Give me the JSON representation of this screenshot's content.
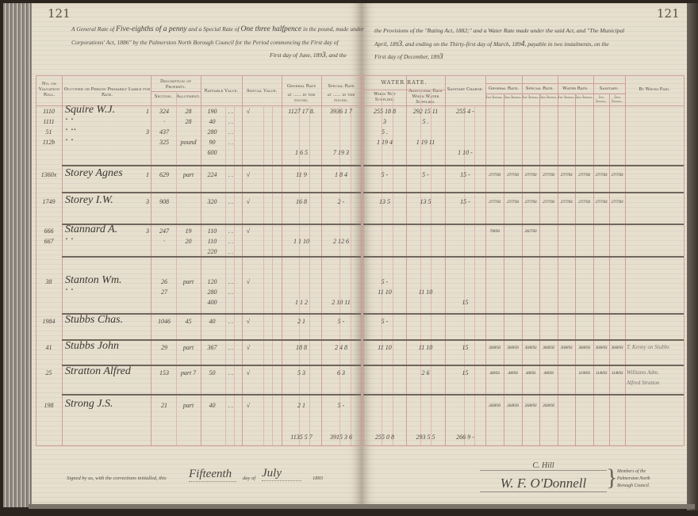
{
  "left_page": {
    "page_number": "121",
    "intro": {
      "l1_a": "A General Rate of ",
      "l1_hw1": "Five-eighths of a penny",
      "l1_b": " and a Special Rate of ",
      "l1_hw2": "One three halfpence",
      "l1_c": " in the pound, made under",
      "l2": "Corporations' Act, 1886\" by the Palmerston North Borough Council for the Period commencing the First day of",
      "l3_a": "First day of June, 189",
      "l3_hw": "3",
      "l3_b": ", and the"
    },
    "headers": {
      "roll": "No. on Valuation Roll.",
      "occupier": "Occupier or Person Primarily Liable for Rate.",
      "description": "Description of Property.",
      "section": "Section.",
      "allotment": "Allotment.",
      "rateable": "Rateable Value.",
      "annual": "Annual Value.",
      "general": "General Rate",
      "general_sub": "at ...... in the pound.",
      "special": "Special Rate",
      "special_sub": "at ...... in the pound."
    },
    "footer": {
      "signed": "Signed by us, with the corrections initialled, this",
      "day_hw": "Fifteenth",
      "day_of": "day of",
      "month_hw": "July",
      "year": "189",
      "year_hw": "3"
    }
  },
  "right_page": {
    "page_number": "121",
    "intro": {
      "l1": "the Provisions of the \"Rating Act, 1882;\" and a Water Rate made under the said Act, and \"The Municipal",
      "l2_a": "April, 189",
      "l2_hw1": "3",
      "l2_b": ", and ending on the Thirty-first day of March, 189",
      "l2_hw2": "4",
      "l2_c": ", payable in two instalments, on the",
      "l3_a": "First day of December, 189",
      "l3_hw": "3"
    },
    "headers": {
      "water_rate": "WATER RATE.",
      "not_supplied": "When Not Supplied.",
      "additional": "Additional Rate When Water Supplied.",
      "sanitary": "Sanitary Charge.",
      "groups": [
        "General Rate.",
        "Special Rate.",
        "Water Rate.",
        "Sanitary."
      ],
      "inst1": "1st Instal.",
      "inst2": "2nd Instal.",
      "paid_by": "By Whom Paid."
    },
    "footer": {
      "sig1": "C. Hill",
      "sig2": "W. F. O'Donnell",
      "members": [
        "Members of the",
        "Palmerston North",
        "Borough Council."
      ]
    }
  },
  "entries": [
    {
      "lines": [
        {
          "roll": "1110",
          "name": "Squire W.J.",
          "ward": "1",
          "sect": "324",
          "allot": "28",
          "rateable": "190",
          "dots": ". .",
          "check": "√",
          "general": "1127 17 8.",
          "special": "3936 1 7",
          "water_ns": "255 18 8",
          "water_add": "292 15 11",
          "sanitary": "255 4 -"
        },
        {
          "roll": "1111",
          "name": "·    ·",
          "sect": "·",
          "allot": "28",
          "rateable": "40",
          "dots": ". .",
          "water_ns": "3",
          "water_add": "5 ."
        },
        {
          "roll": "51",
          "name": "·    ··",
          "ward": "3",
          "sect": "437",
          "rateable": "280",
          "dots": ". .",
          "water_ns": "5 ."
        },
        {
          "roll": "112b",
          "name": "·    ·",
          "sect": "325",
          "allot": "pound",
          "rateable": "90",
          "dots": ". .",
          "water_ns": "1 19 4",
          "water_add": "1 19 11"
        },
        {
          "rateable": "600",
          "general": "1 6 5",
          "special": "7 19 3",
          "sanitary": "1 10 -"
        }
      ]
    },
    {
      "lines": [
        {
          "roll": "1360x",
          "name": "Storey Agnes",
          "ward": "1",
          "sect": "629",
          "allot": "part",
          "rateable": "224",
          "dots": ". .",
          "check": "√",
          "general": "11 9",
          "special": "1 8 4",
          "water_ns": "5 -",
          "water_add": "5 -",
          "sanitary": "15 -",
          "payments": [
            "27/7/93",
            "27/7/93",
            "27/7/93",
            "27/7/93",
            "27/7/93",
            "27/7/93",
            "27/7/93",
            "27/7/93"
          ]
        }
      ]
    },
    {
      "lines": [
        {
          "roll": "1749",
          "name": "Storey I.W.",
          "ward": "3",
          "sect": "908",
          "rateable": "320",
          "dots": ". .",
          "check": "√",
          "general": "16 8",
          "special": "2 -",
          "water_ns": "13 5",
          "water_add": "13 5",
          "sanitary": "15 -",
          "payments": [
            "27/7/93",
            "27/7/93",
            "27/7/93",
            "27/7/93",
            "27/7/93",
            "27/7/93",
            "27/7/93",
            "27/7/93"
          ]
        }
      ]
    },
    {
      "lines": [
        {
          "roll": "666",
          "name": "Stannard A.",
          "ward": "3",
          "sect": "247",
          "allot": "19",
          "rateable": "110",
          "dots": ". .",
          "check": "√",
          "payments": [
            "7/8/93",
            "",
            "26/7/93",
            "",
            "",
            "",
            "",
            ""
          ]
        },
        {
          "roll": "667",
          "name": "·    ·",
          "sect": "·",
          "allot": "20",
          "rateable": "110",
          "dots": ". .",
          "general": "1 1 10",
          "special": "2 12 6"
        },
        {
          "rateable": "220",
          "dots": ". ."
        }
      ]
    },
    {
      "lines": [
        {
          "roll": "38",
          "name": "Stanton Wm.",
          "sect": "26",
          "allot": "part",
          "rateable": "120",
          "dots": ". .",
          "check": "√",
          "water_ns": "5 -"
        },
        {
          "name": "·    ·",
          "sect": "27",
          "rateable": "280",
          "dots": ". .",
          "water_ns": "11 10",
          "water_add": "11 10"
        },
        {
          "rateable": "400",
          "general": "1 1 2",
          "special": "2 10 11",
          "sanitary": "15"
        }
      ]
    },
    {
      "lines": [
        {
          "roll": "1984",
          "name": "Stubbs Chas.",
          "sect": "1046",
          "allot": "45",
          "rateable": "40",
          "dots": ". .",
          "check": "√",
          "general": "2 1",
          "special": "5 -",
          "water_ns": "5 -"
        }
      ]
    },
    {
      "lines": [
        {
          "roll": "41",
          "name": "Stubbs John",
          "sect": "29",
          "allot": "part",
          "rateable": "367",
          "dots": ". .",
          "check": "√",
          "general": "18 8",
          "special": "2 4 8",
          "water_ns": "11 10",
          "water_add": "11 10",
          "sanitary": "15",
          "payments": [
            "30/8/93",
            "30/8/93",
            "30/8/93",
            "30/8/93",
            "30/8/93",
            "30/8/93",
            "30/8/93",
            "30/8/93"
          ],
          "paid_by": "T. Kenny on Stubbs"
        }
      ]
    },
    {
      "lines": [
        {
          "roll": "25",
          "name": "Stratton Alfred",
          "sect": "153",
          "allot": "part 7",
          "rateable": "50",
          "dots": ". .",
          "check": "√",
          "general": "5 3",
          "special": "6 3",
          "water_add": "2 6",
          "sanitary": "15",
          "payments": [
            "4/8/93",
            "4/8/93",
            "4/8/93",
            "4/8/93",
            "",
            "11/8/93",
            "11/8/93",
            "11/8/93"
          ],
          "paid_by": "Williams Adm."
        },
        {
          "paid_by": "Alfred Stratton"
        }
      ]
    },
    {
      "lines": [
        {
          "roll": "198",
          "name": "Strong J.S.",
          "sect": "21",
          "allot": "part",
          "rateable": "40",
          "dots": ". .",
          "check": "√",
          "general": "2 1",
          "special": "5 -",
          "payments": [
            "26/8/93",
            "26/8/93",
            "26/8/93",
            "26/8/93",
            "",
            "",
            "",
            ""
          ]
        }
      ]
    },
    {
      "lines": [
        {
          "general": "1135 5 7",
          "special": "3915 3 6",
          "water_ns": "255 0 8",
          "water_add": "293 5 5",
          "sanitary": "266 9 -"
        }
      ]
    }
  ],
  "colors": {
    "paper": "#e7dfcd",
    "ruling_red": "#cf9c9c",
    "row_rule": "#70655b",
    "ink": "#4a433c"
  }
}
